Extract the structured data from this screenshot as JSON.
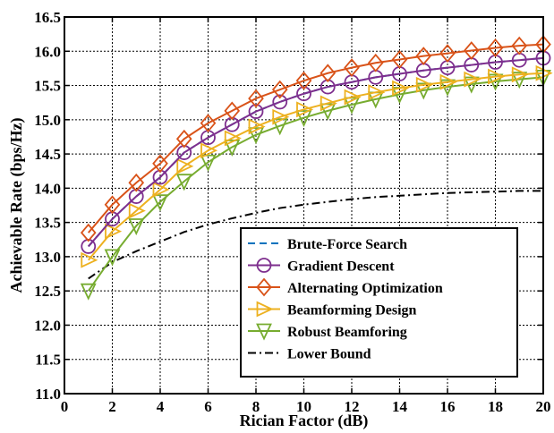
{
  "chart_data": {
    "type": "line",
    "xlabel": "Rician Factor (dB)",
    "ylabel": "Achievable Rate (bps/Hz)",
    "xlim": [
      0,
      20
    ],
    "ylim": [
      11.0,
      16.5
    ],
    "xticks": [
      0,
      2,
      4,
      6,
      8,
      10,
      12,
      14,
      16,
      18,
      20
    ],
    "yticks": [
      11.0,
      11.5,
      12.0,
      12.5,
      13.0,
      13.5,
      14.0,
      14.5,
      15.0,
      15.5,
      16.0,
      16.5
    ],
    "xtick_labels": [
      "0",
      "2",
      "4",
      "6",
      "8",
      "10",
      "12",
      "14",
      "16",
      "18",
      "20"
    ],
    "ytick_labels": [
      "11.0",
      "11.5",
      "12.0",
      "12.5",
      "13.0",
      "13.5",
      "14.0",
      "14.5",
      "15.0",
      "15.5",
      "16.0",
      "16.5"
    ],
    "grid": true,
    "legend_position": "bottom-right",
    "x": [
      1,
      2,
      3,
      4,
      5,
      6,
      7,
      8,
      9,
      10,
      11,
      12,
      13,
      14,
      15,
      16,
      17,
      18,
      19,
      20
    ],
    "series": [
      {
        "name": "Brute-Force Search",
        "color": "#0072BD",
        "line_style": "dashed",
        "marker": "none",
        "values": [
          13.15,
          13.55,
          13.88,
          14.16,
          14.52,
          14.74,
          14.93,
          15.12,
          15.26,
          15.38,
          15.48,
          15.55,
          15.62,
          15.67,
          15.72,
          15.76,
          15.8,
          15.84,
          15.87,
          15.9
        ]
      },
      {
        "name": "Gradient Descent",
        "color": "#7E2F8E",
        "line_style": "solid",
        "marker": "circle",
        "values": [
          13.15,
          13.55,
          13.88,
          14.16,
          14.52,
          14.74,
          14.93,
          15.12,
          15.26,
          15.38,
          15.48,
          15.55,
          15.62,
          15.67,
          15.72,
          15.76,
          15.8,
          15.84,
          15.87,
          15.9
        ]
      },
      {
        "name": "Alternating Optimization",
        "color": "#D95319",
        "line_style": "solid",
        "marker": "diamond",
        "values": [
          13.35,
          13.76,
          14.08,
          14.36,
          14.72,
          14.95,
          15.13,
          15.31,
          15.44,
          15.57,
          15.68,
          15.76,
          15.83,
          15.88,
          15.93,
          15.97,
          16.01,
          16.05,
          16.08,
          16.1
        ]
      },
      {
        "name": "Beamforming Design",
        "color": "#EDB120",
        "line_style": "solid",
        "marker": "triangle-right",
        "values": [
          12.95,
          13.37,
          13.67,
          13.98,
          14.32,
          14.55,
          14.73,
          14.9,
          15.04,
          15.15,
          15.24,
          15.33,
          15.4,
          15.46,
          15.51,
          15.55,
          15.59,
          15.63,
          15.66,
          15.68
        ]
      },
      {
        "name": "Robust Beamforing",
        "color": "#77AC30",
        "line_style": "solid",
        "marker": "triangle-down",
        "values": [
          12.5,
          13.0,
          13.45,
          13.8,
          14.1,
          14.38,
          14.6,
          14.78,
          14.91,
          15.03,
          15.13,
          15.22,
          15.3,
          15.37,
          15.43,
          15.48,
          15.52,
          15.56,
          15.59,
          15.62
        ]
      },
      {
        "name": "Lower Bound",
        "color": "#000000",
        "line_style": "dashdot",
        "marker": "none",
        "values": [
          12.68,
          12.92,
          13.08,
          13.22,
          13.36,
          13.47,
          13.56,
          13.64,
          13.71,
          13.76,
          13.8,
          13.84,
          13.87,
          13.89,
          13.91,
          13.93,
          13.94,
          13.95,
          13.96,
          13.96
        ]
      }
    ]
  }
}
